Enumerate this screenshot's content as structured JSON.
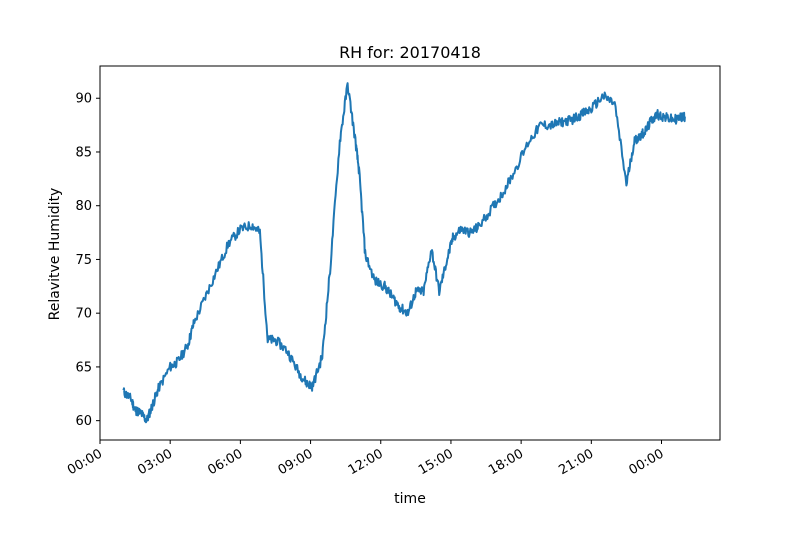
{
  "chart_data": {
    "type": "line",
    "title": "RH for: 20170418",
    "xlabel": "time",
    "ylabel": "Relavitve Humidity",
    "xlim": [
      "00:00",
      "26:30"
    ],
    "ylim": [
      58.2,
      93
    ],
    "grid": false,
    "legend": "none",
    "x_ticks": [
      "00:00",
      "03:00",
      "06:00",
      "09:00",
      "12:00",
      "15:00",
      "18:00",
      "21:00",
      "00:00"
    ],
    "y_ticks": [
      "60",
      "65",
      "70",
      "75",
      "80",
      "85",
      "90"
    ],
    "series": [
      {
        "color": "#1f77b4",
        "x": [
          "01:00",
          "01:20",
          "01:30",
          "01:45",
          "02:00",
          "02:15",
          "02:30",
          "03:00",
          "03:20",
          "03:45",
          "04:00",
          "04:30",
          "05:00",
          "05:30",
          "06:00",
          "06:30",
          "06:50",
          "07:10",
          "07:30",
          "08:00",
          "08:30",
          "08:50",
          "09:05",
          "09:30",
          "09:50",
          "10:15",
          "10:35",
          "10:55",
          "11:05",
          "11:20",
          "11:45",
          "12:10",
          "12:30",
          "12:50",
          "13:10",
          "13:30",
          "13:50",
          "14:10",
          "14:30",
          "14:50",
          "15:05",
          "15:25",
          "15:50",
          "16:10",
          "16:40",
          "17:10",
          "17:40",
          "18:20",
          "18:50",
          "19:20",
          "19:45",
          "20:10",
          "20:35",
          "21:00",
          "21:30",
          "22:00",
          "22:30",
          "22:50",
          "23:05",
          "23:20",
          "23:35",
          "23:50",
          "24:10",
          "24:30",
          "24:50",
          "25:00"
        ],
        "y": [
          62.7,
          62.0,
          61.0,
          60.7,
          60.0,
          61.5,
          63.0,
          65.0,
          65.5,
          67.0,
          69.0,
          71.5,
          74.0,
          76.5,
          77.8,
          78.2,
          77.5,
          67.5,
          67.5,
          66.5,
          64.5,
          63.5,
          63.2,
          66.0,
          74.0,
          86.0,
          91.3,
          86.0,
          83.0,
          75.5,
          73.0,
          72.5,
          71.5,
          70.5,
          70.0,
          72.0,
          72.0,
          76.0,
          72.0,
          75.0,
          77.0,
          77.8,
          77.5,
          78.0,
          79.5,
          81.0,
          83.0,
          86.0,
          87.5,
          87.5,
          87.8,
          88.0,
          88.5,
          89.0,
          90.2,
          89.5,
          82.0,
          86.0,
          86.5,
          87.0,
          88.0,
          88.5,
          88.2,
          88.0,
          88.2,
          88.3
        ]
      }
    ]
  }
}
